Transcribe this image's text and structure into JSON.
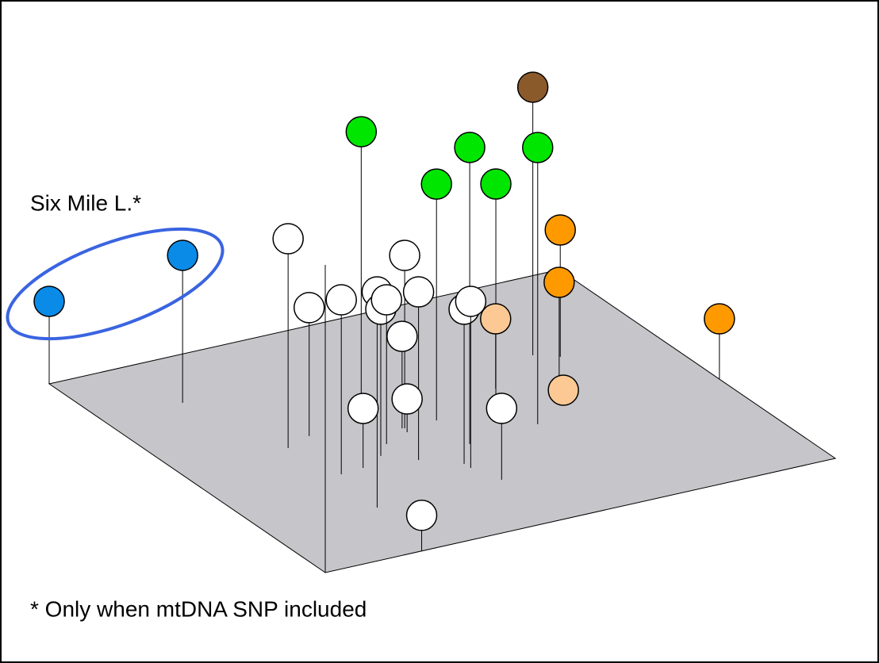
{
  "chart_data": {
    "type": "scatter3d",
    "annotations": [
      "Six Mile L.*",
      "* Only when mtDNA SNP included"
    ],
    "xlim": [
      0,
      1
    ],
    "ylim": [
      0,
      1
    ],
    "zlim": [
      0,
      1
    ],
    "series": [
      {
        "color": "#8b5a2b",
        "x": [
          0.776
        ],
        "y": [
          0.318
        ],
        "z": [
          0.845
        ]
      },
      {
        "color": "#ff9900",
        "x": [
          0.813,
          0.76,
          1.0
        ],
        "y": [
          0.349,
          0.443,
          0.58
        ],
        "z": [
          0.4,
          0.31,
          0.19
        ]
      },
      {
        "color": "#00e600",
        "x": [
          0.399,
          0.491,
          0.634,
          0.493,
          0.598
        ],
        "y": [
          0.393,
          0.616,
          0.598,
          0.492,
          0.513
        ],
        "z": [
          0.885,
          0.935,
          0.8725,
          0.745,
          0.72
        ]
      },
      {
        "color": "#ffffff",
        "x": [
          0.214,
          0.271,
          0.236,
          0.429,
          0.217,
          0.334,
          0.368,
          0.381,
          0.425,
          0.44,
          0.441,
          0.282,
          0.424,
          0.461,
          0.189
        ],
        "y": [
          0.47,
          0.441,
          0.622,
          0.495,
          0.787,
          0.584,
          0.542,
          0.634,
          0.493,
          0.69,
          0.712,
          0.616,
          0.513,
          0.787,
          1.0
        ],
        "z": [
          0.66,
          0.405,
          0.55,
          0.545,
          0.68,
          0.4625,
          0.455,
          0.53,
          0.29,
          0.4875,
          0.525,
          0.1875,
          0.105,
          0.225,
          0.1125
        ]
      },
      {
        "color": "#fcc995",
        "x": [
          0.649,
          0.732
        ],
        "y": [
          0.418,
          0.51
        ],
        "z": [
          0.22,
          0.02
        ]
      },
      {
        "color": "#0a8be8",
        "x": [
          0,
          0.156
        ],
        "y": [
          0,
          0.195
        ],
        "z": [
          0.26,
          0.465
        ]
      }
    ]
  }
}
